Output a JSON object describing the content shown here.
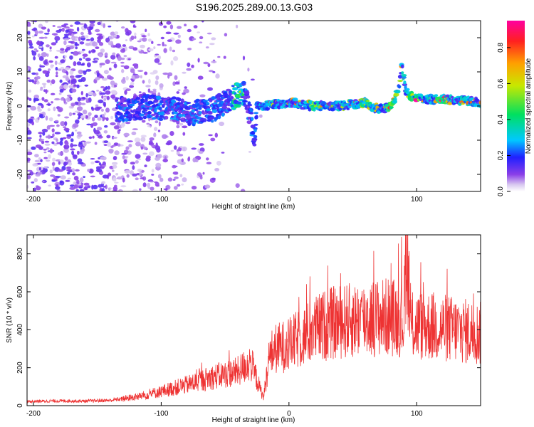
{
  "title": "S196.2025.289.00.13.G03",
  "chart_data": [
    {
      "type": "heatmap",
      "name": "spectrogram",
      "xlabel": "Height of straight line (km)",
      "ylabel": "Frequency (Hz)",
      "xlim": [
        -205,
        150
      ],
      "ylim": [
        -25,
        25
      ],
      "xticks": [
        -200,
        -100,
        0,
        100
      ],
      "yticks": [
        -20,
        -10,
        0,
        10,
        20
      ],
      "colorbar": {
        "label": "Normalized spectral amplitude",
        "range": [
          0,
          0.95
        ],
        "ticks": [
          "0.0",
          "0.2",
          "0.4",
          "0.6",
          "0.8"
        ],
        "tick_values": [
          0.0,
          0.2,
          0.4,
          0.6,
          0.8
        ]
      },
      "ridge": {
        "description_points_x": [
          -130,
          -110,
          -90,
          -75,
          -60,
          -50,
          -42,
          -35,
          -30,
          -27,
          -25,
          0,
          20,
          40,
          60,
          70,
          80,
          86,
          88,
          92,
          100,
          120,
          150
        ],
        "description_points_y": [
          -1,
          0,
          -1,
          -2,
          -1,
          1,
          3,
          4,
          -3,
          -9,
          0,
          1,
          0,
          0,
          1,
          -1,
          0,
          5,
          12,
          4,
          2,
          2,
          1
        ],
        "peak_amplitude_x": [
          -40,
          20,
          60,
          80,
          98,
          120
        ]
      }
    },
    {
      "type": "line",
      "name": "snr",
      "xlabel": "Height of straight line (km)",
      "ylabel": "SNR (10 * v/v)",
      "xlim": [
        -205,
        150
      ],
      "ylim": [
        0,
        900
      ],
      "xticks": [
        -200,
        -100,
        0,
        100
      ],
      "yticks": [
        0,
        200,
        400,
        600,
        800
      ],
      "color": "#ee3333",
      "series": [
        {
          "name": "SNR",
          "x": [
            -205,
            -180,
            -160,
            -140,
            -120,
            -100,
            -80,
            -60,
            -40,
            -30,
            -20,
            -15,
            -10,
            0,
            20,
            30,
            40,
            60,
            80,
            90,
            92,
            95,
            110,
            130,
            150
          ],
          "y": [
            22,
            25,
            24,
            28,
            45,
            75,
            110,
            150,
            180,
            230,
            40,
            270,
            300,
            320,
            400,
            430,
            440,
            460,
            470,
            450,
            900,
            420,
            420,
            400,
            380
          ]
        }
      ]
    }
  ]
}
